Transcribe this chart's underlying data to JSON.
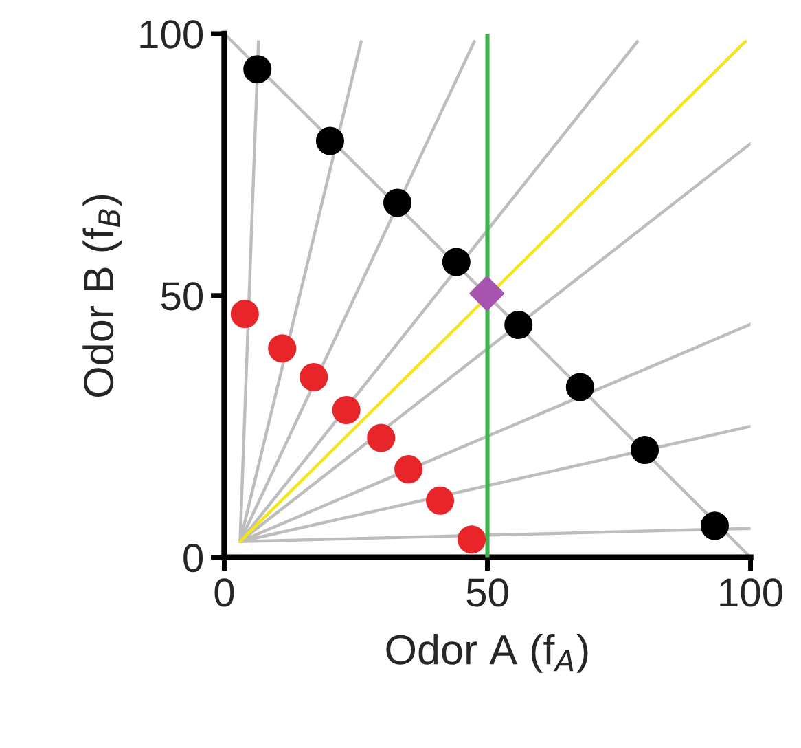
{
  "chart_data": {
    "type": "scatter",
    "xlabel": "Odor A (f$_{A}$)",
    "ylabel": "Odor B (f$_{B}$)",
    "xlim": [
      0,
      100
    ],
    "ylim": [
      0,
      100
    ],
    "xticks": [
      0,
      50,
      100
    ],
    "yticks": [
      0,
      50,
      100
    ],
    "grid": false,
    "legend": false,
    "ref_lines": [
      {
        "axis": "x",
        "value": 50,
        "color": "#3cb44b",
        "line_style": "solid"
      }
    ],
    "series": [
      {
        "type": "line",
        "color": "#bdbdbd",
        "x": [
          3,
          6.5
        ],
        "values": [
          3,
          98.5
        ]
      },
      {
        "type": "line",
        "color": "#bdbdbd",
        "x": [
          3,
          26
        ],
        "values": [
          3,
          98.5
        ]
      },
      {
        "type": "line",
        "color": "#bdbdbd",
        "x": [
          3,
          47.5
        ],
        "values": [
          3,
          98.5
        ]
      },
      {
        "type": "line",
        "color": "#bdbdbd",
        "x": [
          3,
          78.5
        ],
        "values": [
          3,
          98.5
        ]
      },
      {
        "type": "line",
        "color": "#bdbdbd",
        "x": [
          3,
          100
        ],
        "values": [
          3,
          79
        ]
      },
      {
        "type": "line",
        "color": "#bdbdbd",
        "x": [
          3,
          100
        ],
        "values": [
          3,
          44.5
        ]
      },
      {
        "type": "line",
        "color": "#bdbdbd",
        "x": [
          3,
          100
        ],
        "values": [
          3,
          25
        ]
      },
      {
        "type": "line",
        "color": "#bdbdbd",
        "x": [
          3,
          100
        ],
        "values": [
          3,
          5.5
        ]
      },
      {
        "type": "line",
        "color": "#bdbdbd",
        "x": [
          0,
          100
        ],
        "values": [
          100,
          0
        ]
      },
      {
        "type": "line",
        "color": "#f5e51b",
        "x": [
          3,
          99
        ],
        "values": [
          3,
          98.5
        ]
      },
      {
        "marker": "circle",
        "color": "#000000",
        "x": [
          6.3,
          20.1,
          32.9,
          44.1,
          55.9,
          67.6,
          79.9,
          93.2
        ],
        "values": [
          93.2,
          79.5,
          67.7,
          56.4,
          44.4,
          32.5,
          20.5,
          6.0
        ]
      },
      {
        "marker": "circle",
        "color": "#e8262a",
        "x": [
          3.9,
          11,
          17,
          23.2,
          29.8,
          35,
          41,
          47
        ],
        "values": [
          46.5,
          39.9,
          34.4,
          28.1,
          22.8,
          16.8,
          10.8,
          3.4
        ]
      },
      {
        "marker": "diamond",
        "color": "#a855b0",
        "x": [
          49.9
        ],
        "values": [
          50.4
        ]
      }
    ]
  }
}
